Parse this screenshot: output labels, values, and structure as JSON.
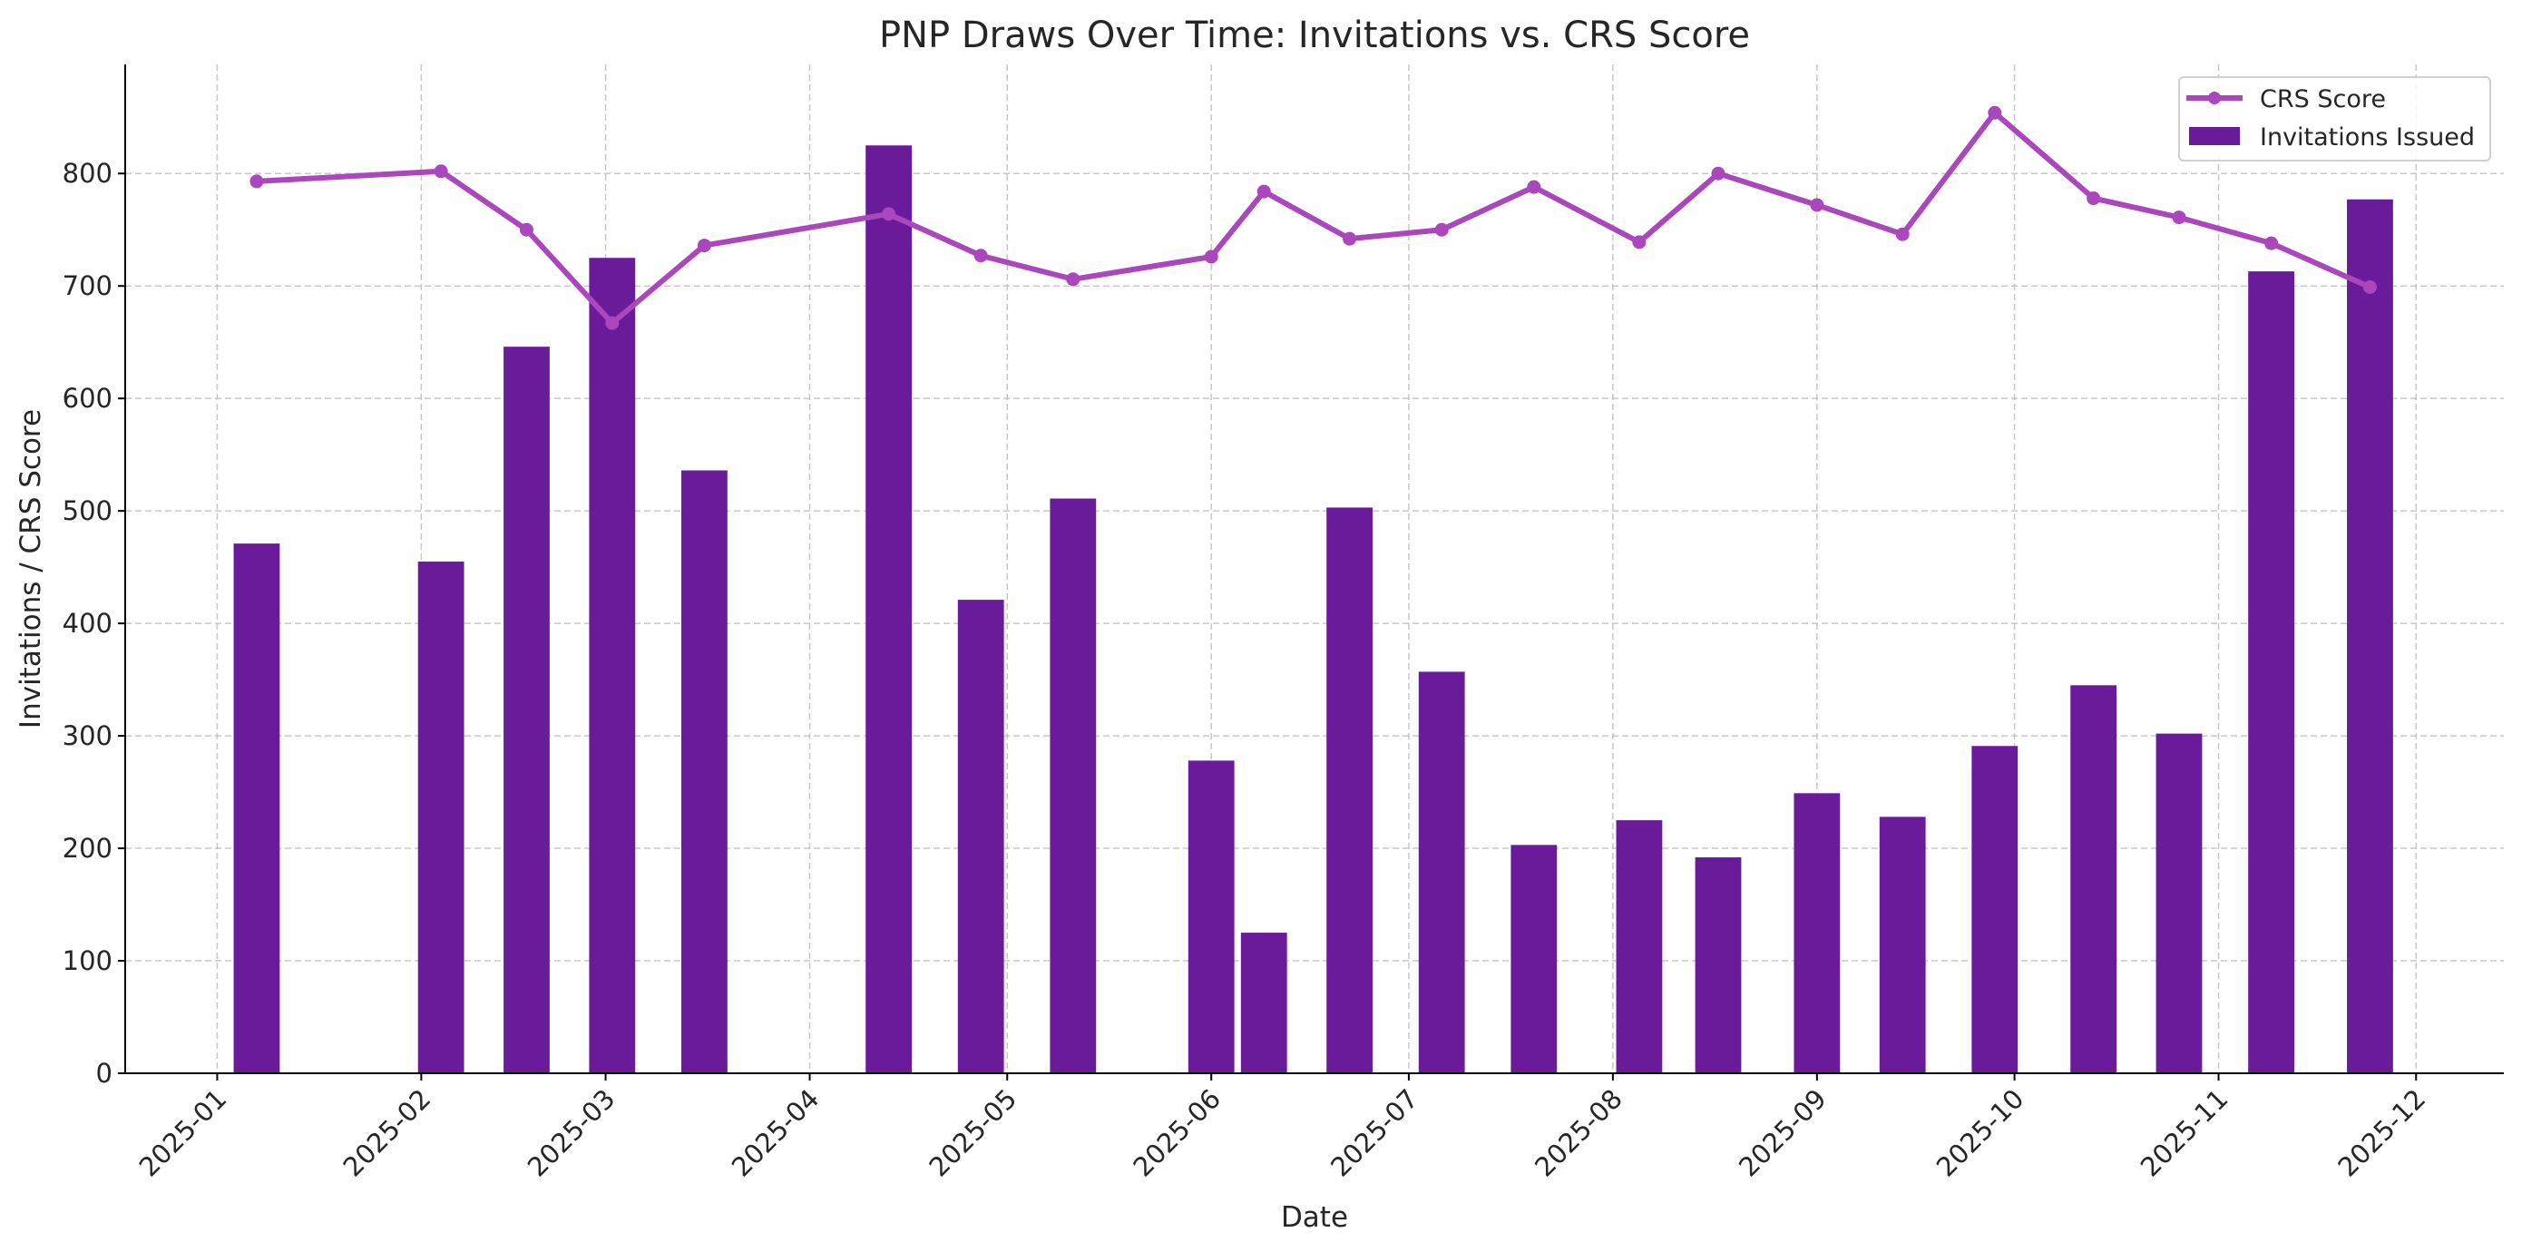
{
  "chart_data": {
    "type": "bar+line",
    "title": "PNP Draws Over Time: Invitations vs. CRS Score",
    "xlabel": "Date",
    "ylabel": "Invitations / CRS Score",
    "ylim": [
      0,
      897
    ],
    "yticks": [
      0,
      100,
      200,
      300,
      400,
      500,
      600,
      700,
      800
    ],
    "xticks": [
      "2025-01",
      "2025-02",
      "2025-03",
      "2025-04",
      "2025-05",
      "2025-06",
      "2025-07",
      "2025-08",
      "2025-09",
      "2025-10",
      "2025-11",
      "2025-12"
    ],
    "grid": true,
    "legend_position": "top-right",
    "dates": [
      "2025-01-07",
      "2025-02-04",
      "2025-02-17",
      "2025-03-02",
      "2025-03-16",
      "2025-04-13",
      "2025-04-27",
      "2025-05-11",
      "2025-06-01",
      "2025-06-09",
      "2025-06-22",
      "2025-07-06",
      "2025-07-20",
      "2025-08-05",
      "2025-08-17",
      "2025-09-01",
      "2025-09-14",
      "2025-09-28",
      "2025-10-13",
      "2025-10-26",
      "2025-11-09",
      "2025-11-24"
    ],
    "series": [
      {
        "name": "Invitations Issued",
        "type": "bar",
        "color": "#6a1b9a",
        "values": [
          471,
          455,
          646,
          725,
          536,
          825,
          421,
          511,
          278,
          125,
          503,
          357,
          203,
          225,
          192,
          249,
          228,
          291,
          345,
          302,
          713,
          777
        ]
      },
      {
        "name": "CRS Score",
        "type": "line",
        "color": "#ab47bc",
        "values": [
          793,
          802,
          750,
          667,
          736,
          764,
          727,
          706,
          726,
          784,
          742,
          750,
          788,
          739,
          800,
          772,
          746,
          854,
          778,
          761,
          738,
          699
        ]
      }
    ]
  }
}
